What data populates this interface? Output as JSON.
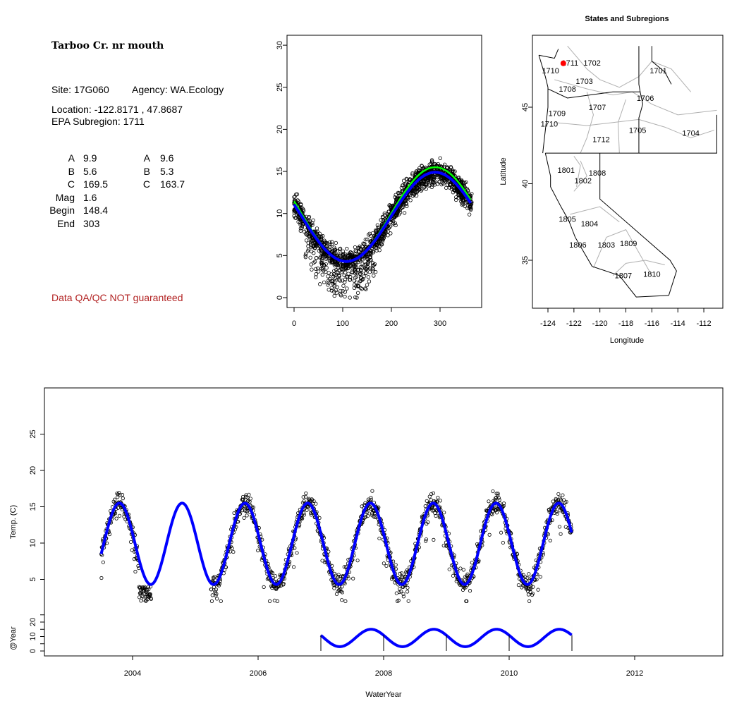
{
  "info": {
    "site_title": "Tarboo Cr. nr mouth",
    "site": "Site: 17G060",
    "agency": "Agency: WA.Ecology",
    "location": "Location: -122.8171 , 47.8687",
    "subregion": "EPA Subregion: 1711",
    "params_left": [
      {
        "k": "A",
        "v": "9.9"
      },
      {
        "k": "B",
        "v": "5.6"
      },
      {
        "k": "C",
        "v": "169.5"
      },
      {
        "k": "Mag",
        "v": "1.6"
      },
      {
        "k": "Begin",
        "v": "148.4"
      },
      {
        "k": "End",
        "v": "303"
      }
    ],
    "params_right": [
      {
        "k": "A",
        "v": "9.6"
      },
      {
        "k": "B",
        "v": "5.3"
      },
      {
        "k": "C",
        "v": "163.7"
      }
    ],
    "disclaimer": "Data QA/QC NOT guaranteed"
  },
  "chart_data": [
    {
      "type": "scatter",
      "name": "day-of-water-year",
      "xlim": [
        0,
        365
      ],
      "ylim": [
        0,
        30
      ],
      "xticks": [
        "0",
        "100",
        "200",
        "300"
      ],
      "yticks": [
        "0",
        "5",
        "10",
        "15",
        "20",
        "25",
        "30"
      ],
      "fits": [
        {
          "name": "fit-green",
          "color": "#00ff00",
          "mean": 9.9,
          "amp": 5.6,
          "peak_day": 290
        },
        {
          "name": "fit-blue",
          "color": "#0000ff",
          "mean": 9.6,
          "amp": 5.3,
          "peak_day": 290
        }
      ]
    },
    {
      "type": "map",
      "title": "States and Subregions",
      "xlabel": "Longitude",
      "ylabel": "Latitude",
      "xlim": [
        -125.2,
        -110.5
      ],
      "ylim": [
        32.3,
        48.9
      ],
      "xticks": [
        "-124",
        "-122",
        "-120",
        "-118",
        "-116",
        "-114",
        "-112"
      ],
      "yticks": [
        "35",
        "40",
        "45"
      ],
      "site": {
        "lon": -122.8171,
        "lat": 47.8687,
        "color": "#ff0000"
      },
      "regions": [
        {
          "id": "1702",
          "lon": -120.6,
          "lat": 47.9
        },
        {
          "id": "1701",
          "lon": -115.5,
          "lat": 47.4
        },
        {
          "id": "1711",
          "lon": -122.3,
          "lat": 47.9
        },
        {
          "id": "1710",
          "lon": -123.8,
          "lat": 47.4
        },
        {
          "id": "1703",
          "lon": -121.2,
          "lat": 46.7
        },
        {
          "id": "1708",
          "lon": -122.5,
          "lat": 46.2
        },
        {
          "id": "1706",
          "lon": -116.5,
          "lat": 45.6
        },
        {
          "id": "1707",
          "lon": -120.2,
          "lat": 45.0
        },
        {
          "id": "1709",
          "lon": -123.3,
          "lat": 44.6
        },
        {
          "id": "1710",
          "lon": -123.9,
          "lat": 43.9
        },
        {
          "id": "1705",
          "lon": -117.1,
          "lat": 43.5
        },
        {
          "id": "1704",
          "lon": -113.0,
          "lat": 43.3
        },
        {
          "id": "1712",
          "lon": -119.9,
          "lat": 42.9
        },
        {
          "id": "1801",
          "lon": -122.6,
          "lat": 40.9
        },
        {
          "id": "1808",
          "lon": -120.2,
          "lat": 40.7
        },
        {
          "id": "1802",
          "lon": -121.3,
          "lat": 40.2
        },
        {
          "id": "1805",
          "lon": -122.5,
          "lat": 37.7
        },
        {
          "id": "1804",
          "lon": -120.8,
          "lat": 37.4
        },
        {
          "id": "1806",
          "lon": -121.7,
          "lat": 36.0
        },
        {
          "id": "1803",
          "lon": -119.5,
          "lat": 36.0
        },
        {
          "id": "1809",
          "lon": -117.8,
          "lat": 36.1
        },
        {
          "id": "1807",
          "lon": -118.2,
          "lat": 34.0
        },
        {
          "id": "1810",
          "lon": -116.0,
          "lat": 34.1
        }
      ]
    },
    {
      "type": "line+scatter",
      "name": "timeseries",
      "xlabel": "WaterYear",
      "ylabel": "Temp. (C)",
      "ylabel2": "@Year",
      "xlim": [
        2002.6,
        2013.4
      ],
      "xticks": [
        "2004",
        "2006",
        "2008",
        "2010",
        "2012"
      ],
      "yticks": [
        "5",
        "10",
        "15",
        "20",
        "25"
      ],
      "yticks2": [
        "0",
        "10",
        "20"
      ],
      "fit": {
        "mean": 9.9,
        "amp": 5.6,
        "peak_frac": 0.79,
        "start": 2003.5,
        "end": 2011.0,
        "color": "#0000ff"
      },
      "obs_periods": [
        [
          2003.5,
          2004.3
        ],
        [
          2005.25,
          2011.0
        ]
      ],
      "annual": {
        "mean": 9,
        "amp": 6,
        "peak_frac": 0.8,
        "start": 2007.0,
        "end": 2011.0,
        "year_marks": [
          2007,
          2008,
          2009,
          2010,
          2011
        ]
      }
    }
  ]
}
